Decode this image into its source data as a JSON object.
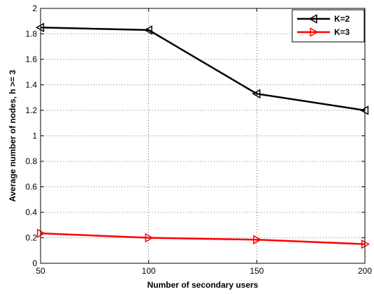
{
  "chart_data": {
    "type": "line",
    "title": "",
    "xlabel": "Number of secondary users",
    "ylabel": "Average number of nodes, h >= 3",
    "x": [
      50,
      100,
      150,
      200
    ],
    "xlim": [
      50,
      200
    ],
    "ylim": [
      0,
      2
    ],
    "xticks": [
      50,
      100,
      150,
      200
    ],
    "xtick_labels": [
      "50",
      "100",
      "150",
      "200"
    ],
    "yticks": [
      0,
      0.2,
      0.4,
      0.6,
      0.8,
      1,
      1.2,
      1.4,
      1.6,
      1.8,
      2
    ],
    "ytick_labels": [
      "0",
      "0.2",
      "0.4",
      "0.6",
      "0.8",
      "1",
      "1.2",
      "1.4",
      "1.6",
      "1.8",
      "2"
    ],
    "grid": true,
    "legend_position": "top-right",
    "series": [
      {
        "name": "K=2",
        "color": "#000000",
        "marker": "left-triangle",
        "values": [
          1.85,
          1.83,
          1.33,
          1.2
        ]
      },
      {
        "name": "K=3",
        "color": "#ff0000",
        "marker": "right-triangle",
        "values": [
          0.235,
          0.2,
          0.185,
          0.15
        ]
      }
    ]
  }
}
